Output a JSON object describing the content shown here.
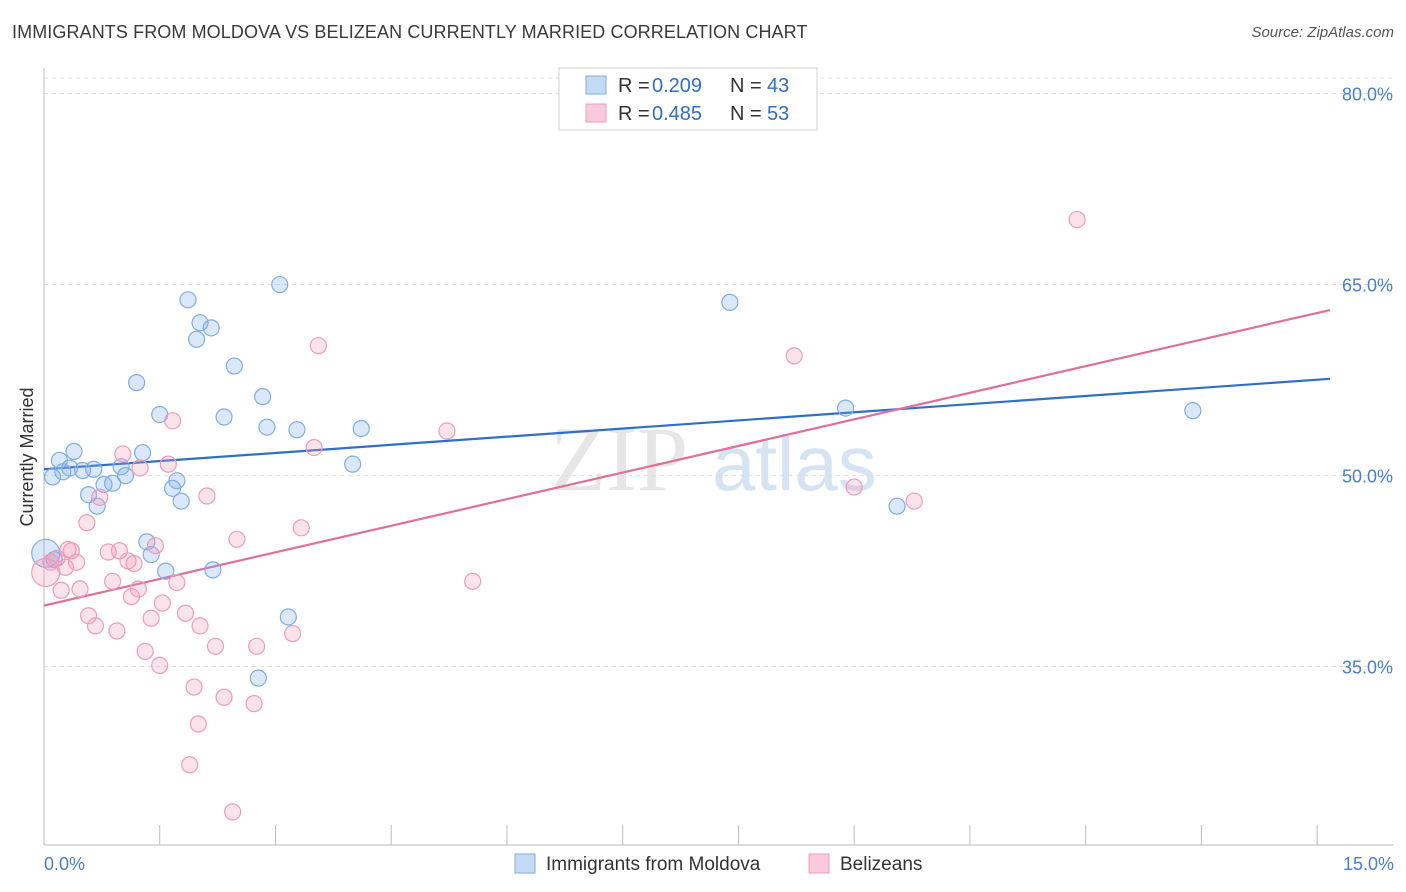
{
  "title": "IMMIGRANTS FROM MOLDOVA VS BELIZEAN CURRENTLY MARRIED CORRELATION CHART",
  "source": "Source: ZipAtlas.com",
  "watermark": {
    "zip": "ZIP",
    "atlas": "atlas"
  },
  "chart_data": {
    "type": "scatter",
    "xlabel": "",
    "ylabel": "Currently Married",
    "xlim": [
      0,
      15
    ],
    "ylim": [
      21,
      82
    ],
    "x_tick_labels": [
      "0.0%",
      "15.0%"
    ],
    "y_ticks": [
      35,
      50,
      65,
      80
    ],
    "y_tick_labels": [
      "35.0%",
      "50.0%",
      "65.0%",
      "80.0%"
    ],
    "grid": true,
    "legend": [
      {
        "r_label": "R = ",
        "r_value": "0.209",
        "n_label": "N = ",
        "n_value": "43"
      },
      {
        "r_label": "R = ",
        "r_value": "0.485",
        "n_label": "N = ",
        "n_value": "53"
      }
    ],
    "series": [
      {
        "name": "Immigrants from Moldova",
        "color": "#7eaee8",
        "line_color": "#2f6fca",
        "trend": {
          "x": [
            0,
            15
          ],
          "y": [
            50.5,
            57.6
          ]
        },
        "points": [
          [
            0.02,
            43.9
          ],
          [
            0.1,
            49.9
          ],
          [
            0.18,
            51.2
          ],
          [
            0.22,
            50.3
          ],
          [
            0.3,
            50.6
          ],
          [
            0.35,
            51.9
          ],
          [
            0.45,
            50.4
          ],
          [
            0.52,
            48.5
          ],
          [
            0.58,
            50.5
          ],
          [
            0.62,
            47.6
          ],
          [
            0.7,
            49.3
          ],
          [
            0.8,
            49.4
          ],
          [
            0.9,
            50.7
          ],
          [
            0.95,
            50.0
          ],
          [
            1.08,
            57.3
          ],
          [
            1.15,
            51.8
          ],
          [
            1.2,
            44.8
          ],
          [
            1.25,
            43.8
          ],
          [
            1.35,
            54.8
          ],
          [
            1.42,
            42.5
          ],
          [
            1.5,
            49.0
          ],
          [
            1.55,
            49.6
          ],
          [
            1.6,
            48.0
          ],
          [
            1.68,
            63.8
          ],
          [
            1.78,
            60.7
          ],
          [
            1.82,
            62.0
          ],
          [
            1.95,
            61.6
          ],
          [
            1.97,
            42.6
          ],
          [
            2.1,
            54.6
          ],
          [
            2.22,
            58.6
          ],
          [
            2.55,
            56.2
          ],
          [
            2.5,
            34.1
          ],
          [
            2.6,
            53.8
          ],
          [
            2.75,
            65.0
          ],
          [
            2.85,
            38.9
          ],
          [
            2.95,
            53.6
          ],
          [
            3.6,
            50.9
          ],
          [
            3.7,
            53.7
          ],
          [
            8.0,
            63.6
          ],
          [
            9.35,
            55.3
          ],
          [
            9.95,
            47.6
          ],
          [
            13.4,
            55.1
          ],
          [
            0.12,
            43.4
          ]
        ]
      },
      {
        "name": "Belizeans",
        "color": "#f19bb8",
        "line_color": "#e07099",
        "trend": {
          "x": [
            0,
            15
          ],
          "y": [
            39.8,
            63.0
          ]
        },
        "points": [
          [
            0.02,
            42.4
          ],
          [
            0.08,
            43.2
          ],
          [
            0.15,
            43.5
          ],
          [
            0.2,
            41.0
          ],
          [
            0.28,
            44.2
          ],
          [
            0.32,
            44.1
          ],
          [
            0.38,
            43.2
          ],
          [
            0.42,
            41.1
          ],
          [
            0.5,
            46.3
          ],
          [
            0.52,
            39.0
          ],
          [
            0.6,
            38.2
          ],
          [
            0.65,
            48.3
          ],
          [
            0.75,
            44.0
          ],
          [
            0.8,
            41.7
          ],
          [
            0.85,
            37.8
          ],
          [
            0.88,
            44.1
          ],
          [
            0.92,
            51.7
          ],
          [
            0.98,
            43.3
          ],
          [
            1.02,
            40.5
          ],
          [
            1.05,
            43.1
          ],
          [
            1.1,
            41.1
          ],
          [
            1.12,
            50.6
          ],
          [
            1.18,
            36.2
          ],
          [
            1.25,
            38.8
          ],
          [
            1.3,
            44.5
          ],
          [
            1.35,
            35.1
          ],
          [
            1.38,
            40.0
          ],
          [
            1.45,
            50.9
          ],
          [
            1.5,
            54.3
          ],
          [
            1.55,
            41.6
          ],
          [
            1.65,
            39.2
          ],
          [
            1.7,
            27.3
          ],
          [
            1.75,
            33.4
          ],
          [
            1.8,
            30.5
          ],
          [
            1.82,
            38.2
          ],
          [
            1.9,
            48.4
          ],
          [
            2.0,
            36.6
          ],
          [
            2.1,
            32.6
          ],
          [
            2.2,
            23.6
          ],
          [
            2.25,
            45.0
          ],
          [
            2.45,
            32.1
          ],
          [
            2.48,
            36.6
          ],
          [
            2.9,
            37.6
          ],
          [
            3.0,
            45.9
          ],
          [
            3.15,
            52.2
          ],
          [
            3.2,
            60.2
          ],
          [
            4.7,
            53.5
          ],
          [
            5.0,
            41.7
          ],
          [
            8.75,
            59.4
          ],
          [
            9.45,
            49.1
          ],
          [
            10.15,
            48.0
          ],
          [
            12.05,
            70.1
          ],
          [
            0.25,
            42.8
          ]
        ]
      }
    ]
  }
}
